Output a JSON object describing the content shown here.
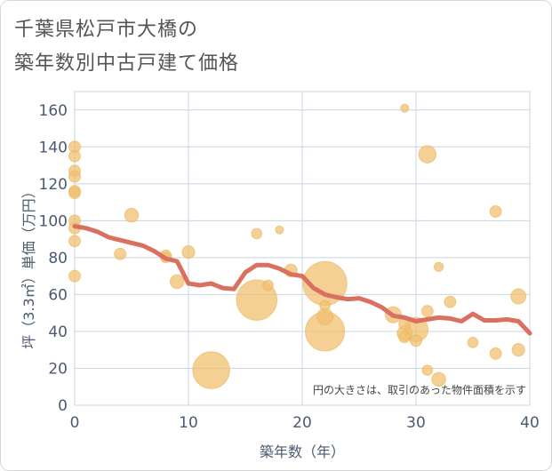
{
  "title_line1": "千葉県松戸市大橋の",
  "title_line2": "築年数別中古戸建て価格",
  "chart_data": {
    "type": "scatter",
    "title": "千葉県松戸市大橋の築年数別中古戸建て価格",
    "xlabel": "築年数（年）",
    "ylabel": "坪（3.3㎡）単価（万円）",
    "xlim": [
      0,
      40
    ],
    "ylim": [
      0,
      170
    ],
    "xticks": [
      0,
      10,
      20,
      30,
      40
    ],
    "yticks": [
      0,
      20,
      40,
      60,
      80,
      100,
      120,
      140,
      160
    ],
    "annotation": "円の大きさは、取引のあった物件面積を示す",
    "colors": {
      "points": "#f0c070",
      "line": "#d97060",
      "grid": "#c8d4e0",
      "axis_text": "#4a5a70"
    },
    "points": [
      {
        "x": 0,
        "y": 140,
        "s": 1
      },
      {
        "x": 0,
        "y": 135,
        "s": 1
      },
      {
        "x": 0,
        "y": 127,
        "s": 1
      },
      {
        "x": 0,
        "y": 124,
        "s": 1
      },
      {
        "x": 0,
        "y": 116,
        "s": 1
      },
      {
        "x": 0,
        "y": 115,
        "s": 1
      },
      {
        "x": 0,
        "y": 100,
        "s": 1
      },
      {
        "x": 0,
        "y": 96,
        "s": 1
      },
      {
        "x": 0,
        "y": 89,
        "s": 1
      },
      {
        "x": 0,
        "y": 70,
        "s": 1
      },
      {
        "x": 4,
        "y": 82,
        "s": 1
      },
      {
        "x": 5,
        "y": 103,
        "s": 1.2
      },
      {
        "x": 8,
        "y": 81,
        "s": 1
      },
      {
        "x": 8,
        "y": 80,
        "s": 0.9
      },
      {
        "x": 9,
        "y": 67,
        "s": 1.2
      },
      {
        "x": 10,
        "y": 83,
        "s": 1.1
      },
      {
        "x": 12,
        "y": 19,
        "s": 3.2
      },
      {
        "x": 16,
        "y": 93,
        "s": 0.9
      },
      {
        "x": 16,
        "y": 57,
        "s": 3.5
      },
      {
        "x": 17,
        "y": 65,
        "s": 0.9
      },
      {
        "x": 18,
        "y": 95,
        "s": 0.7
      },
      {
        "x": 19,
        "y": 73,
        "s": 1.1
      },
      {
        "x": 22,
        "y": 66,
        "s": 3.8
      },
      {
        "x": 22,
        "y": 40,
        "s": 3.4
      },
      {
        "x": 22,
        "y": 54,
        "s": 0.9
      },
      {
        "x": 22,
        "y": 48,
        "s": 1.4
      },
      {
        "x": 28,
        "y": 49,
        "s": 1.4
      },
      {
        "x": 29,
        "y": 161,
        "s": 0.7
      },
      {
        "x": 29,
        "y": 44,
        "s": 1.0
      },
      {
        "x": 29,
        "y": 39,
        "s": 1.3
      },
      {
        "x": 29,
        "y": 37,
        "s": 1.0
      },
      {
        "x": 30,
        "y": 41,
        "s": 2.1
      },
      {
        "x": 30,
        "y": 35,
        "s": 1.0
      },
      {
        "x": 31,
        "y": 136,
        "s": 1.5
      },
      {
        "x": 31,
        "y": 51,
        "s": 1.0
      },
      {
        "x": 31,
        "y": 19,
        "s": 0.9
      },
      {
        "x": 32,
        "y": 75,
        "s": 0.8
      },
      {
        "x": 32,
        "y": 14,
        "s": 1.2
      },
      {
        "x": 33,
        "y": 56,
        "s": 1.0
      },
      {
        "x": 35,
        "y": 34,
        "s": 0.9
      },
      {
        "x": 37,
        "y": 105,
        "s": 1.0
      },
      {
        "x": 37,
        "y": 28,
        "s": 1.0
      },
      {
        "x": 39,
        "y": 59,
        "s": 1.3
      },
      {
        "x": 39,
        "y": 30,
        "s": 1.1
      }
    ],
    "trend_line": {
      "x": [
        0,
        1,
        2,
        3,
        4,
        5,
        6,
        7,
        8,
        9,
        10,
        11,
        12,
        13,
        14,
        15,
        16,
        17,
        18,
        19,
        20,
        21,
        22,
        23,
        24,
        25,
        26,
        27,
        28,
        29,
        30,
        31,
        32,
        33,
        34,
        35,
        36,
        37,
        38,
        39,
        40
      ],
      "y": [
        97,
        96,
        94,
        91,
        89.5,
        88,
        86.5,
        83.5,
        79.5,
        78,
        66,
        65,
        66,
        63.5,
        63,
        72,
        76,
        76,
        74,
        71,
        70,
        63.5,
        60,
        58.5,
        57.5,
        58,
        56,
        53,
        48.5,
        47.5,
        45.5,
        46.5,
        47.5,
        47,
        45.5,
        49.5,
        46,
        46,
        46.5,
        45.5,
        39
      ]
    }
  }
}
